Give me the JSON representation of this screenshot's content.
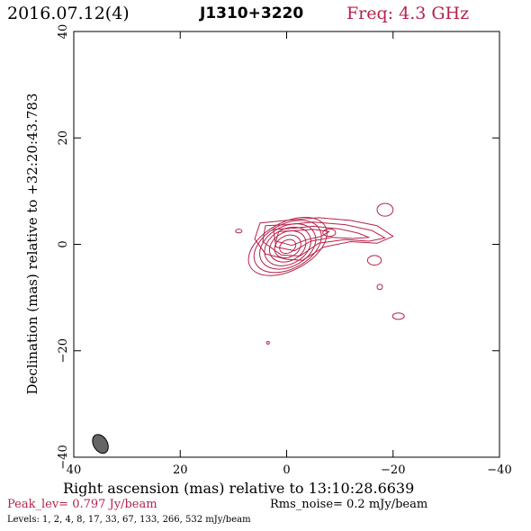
{
  "header": {
    "date": "2016.07.12(4)",
    "source": "J1310+3220",
    "freq": "Freq: 4.3 GHz"
  },
  "footer": {
    "peak": "Peak_lev=  0.797 Jy/beam",
    "rms": "Rms_noise=  0.2 mJy/beam",
    "levels": "Levels:   1,   2,   4,   8,  17,  33,  67, 133, 266, 532 mJy/beam"
  },
  "chart_data": {
    "type": "contour",
    "xlabel": "Right ascension (mas) relative to 13:10:28.6639",
    "ylabel": "Declination (mas) relative to +32:20:43.783",
    "xlim": [
      40,
      -40
    ],
    "ylim": [
      -40,
      40
    ],
    "x_ticks": [
      "40",
      "20",
      "0",
      "−20",
      "−40"
    ],
    "y_ticks": [
      "40",
      "20",
      "0",
      "−20",
      "−40"
    ],
    "contour_color": "#b5224a",
    "levels_mJy": [
      1,
      2,
      4,
      8,
      17,
      33,
      67,
      133,
      266,
      532
    ],
    "beam": {
      "x": 35,
      "y": -37.5,
      "major_mas": 3.8,
      "minor_mas": 2.6,
      "pa_deg": 60
    }
  }
}
